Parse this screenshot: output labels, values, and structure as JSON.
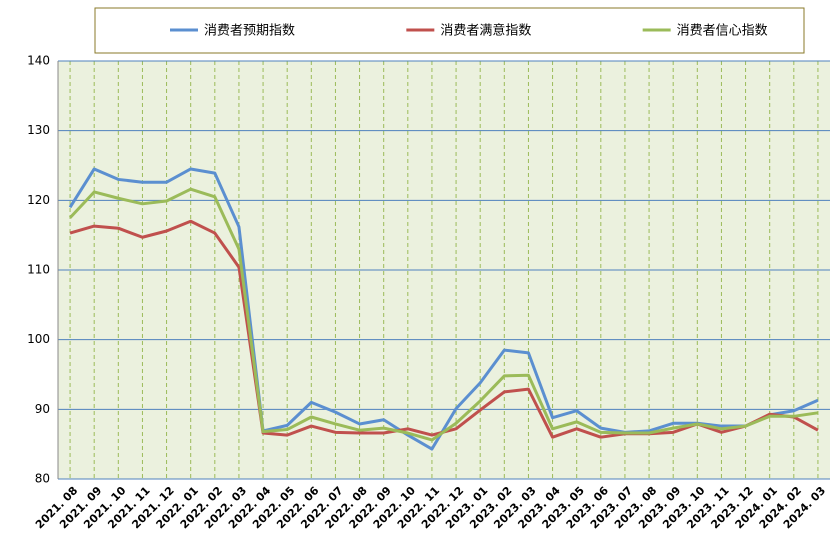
{
  "chart_data": {
    "type": "line",
    "categories": [
      "2021. 08",
      "2021. 09",
      "2021. 10",
      "2021. 11",
      "2021. 12",
      "2022. 01",
      "2022. 02",
      "2022. 03",
      "2022. 04",
      "2022. 05",
      "2022. 06",
      "2022. 07",
      "2022. 08",
      "2022. 09",
      "2022. 10",
      "2022. 11",
      "2022. 12",
      "2023. 01",
      "2023. 02",
      "2023. 03",
      "2023. 04",
      "2023. 05",
      "2023. 06",
      "2023. 07",
      "2023. 08",
      "2023. 09",
      "2023. 10",
      "2023. 11",
      "2023. 12",
      "2024. 01",
      "2024. 02",
      "2024. 03"
    ],
    "series": [
      {
        "name": "消费者预期指数",
        "color": "#5b8fd0",
        "values": [
          119.0,
          124.5,
          123.0,
          122.6,
          122.6,
          124.5,
          123.9,
          116.2,
          86.9,
          87.7,
          91.0,
          89.6,
          87.9,
          88.5,
          86.3,
          84.3,
          90.1,
          93.8,
          98.5,
          98.1,
          88.8,
          89.8,
          87.3,
          86.7,
          86.9,
          88.0,
          88.0,
          87.6,
          87.6,
          89.2,
          89.8,
          91.3
        ]
      },
      {
        "name": "消费者满意指数",
        "color": "#c0504d",
        "values": [
          115.3,
          116.3,
          116.0,
          114.7,
          115.6,
          117.0,
          115.3,
          110.4,
          86.6,
          86.3,
          87.6,
          86.7,
          86.6,
          86.6,
          87.2,
          86.3,
          87.2,
          89.9,
          92.5,
          92.9,
          86.0,
          87.2,
          86.0,
          86.5,
          86.5,
          86.7,
          87.9,
          86.7,
          87.6,
          89.3,
          88.9,
          87.0
        ]
      },
      {
        "name": "消费者信心指数",
        "color": "#9bbb59",
        "values": [
          117.5,
          121.2,
          120.3,
          119.5,
          119.9,
          121.6,
          120.5,
          113.0,
          86.8,
          87.1,
          88.9,
          87.9,
          87.0,
          87.3,
          86.6,
          85.6,
          88.0,
          91.2,
          94.8,
          94.9,
          87.2,
          88.2,
          86.7,
          86.6,
          86.6,
          87.3,
          87.9,
          87.2,
          87.6,
          89.0,
          89.0,
          89.5
        ]
      }
    ],
    "ylim": [
      80,
      140
    ],
    "yticks": [
      80,
      90,
      100,
      110,
      120,
      130,
      140
    ],
    "grid": true,
    "legend": "top"
  }
}
